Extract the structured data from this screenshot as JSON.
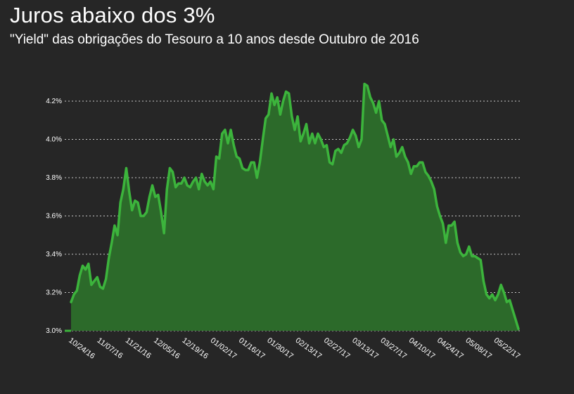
{
  "header": {
    "title": "Juros abaixo dos 3%",
    "subtitle": "\"Yield\" das obrigações do Tesouro a 10 anos desde Outubro de 2016"
  },
  "colors": {
    "background": "#262626",
    "line": "#3cb43c",
    "area": "#2c6a2a",
    "grid": "#ffffff"
  },
  "chart_data": {
    "type": "area",
    "title": "Juros abaixo dos 3%",
    "subtitle": "\"Yield\" das obrigações do Tesouro a 10 anos desde Outubro de 2016",
    "xlabel": "",
    "ylabel": "",
    "ylim": [
      3.0,
      4.3
    ],
    "y_ticks": [
      3.0,
      3.2,
      3.4,
      3.6,
      3.8,
      4.0,
      4.2
    ],
    "y_tick_labels": [
      "3.0%",
      "3.2%",
      "3.4%",
      "3.6%",
      "3.8%",
      "4.0%",
      "4.2%"
    ],
    "x_tick_labels": [
      "10/24/16",
      "11/07/16",
      "11/21/16",
      "12/05/16",
      "12/19/16",
      "01/02/17",
      "01/16/17",
      "01/30/17",
      "02/13/17",
      "02/27/17",
      "03/13/17",
      "03/27/17",
      "04/10/17",
      "04/24/17",
      "05/08/17",
      "05/22/17"
    ],
    "grid": true,
    "series": [
      {
        "values": [
          3.15,
          3.19,
          3.21,
          3.29,
          3.34,
          3.32,
          3.35,
          3.24,
          3.26,
          3.28,
          3.23,
          3.22,
          3.27,
          3.38,
          3.46,
          3.55,
          3.5,
          3.67,
          3.74,
          3.85,
          3.73,
          3.63,
          3.68,
          3.67,
          3.6,
          3.6,
          3.62,
          3.7,
          3.76,
          3.7,
          3.71,
          3.62,
          3.51,
          3.74,
          3.85,
          3.83,
          3.75,
          3.77,
          3.77,
          3.8,
          3.76,
          3.75,
          3.78,
          3.8,
          3.74,
          3.82,
          3.78,
          3.76,
          3.78,
          3.74,
          3.91,
          3.9,
          4.03,
          4.05,
          3.98,
          4.05,
          3.97,
          3.91,
          3.9,
          3.85,
          3.84,
          3.84,
          3.88,
          3.88,
          3.8,
          3.88,
          4.0,
          4.11,
          4.13,
          4.24,
          4.18,
          4.22,
          4.13,
          4.2,
          4.25,
          4.24,
          4.12,
          4.05,
          4.12,
          3.99,
          4.03,
          4.08,
          3.98,
          4.03,
          3.98,
          4.03,
          4.0,
          3.96,
          3.97,
          3.88,
          3.87,
          3.94,
          3.95,
          3.93,
          3.97,
          3.98,
          4.01,
          4.05,
          4.02,
          3.96,
          4.0,
          4.29,
          4.28,
          4.22,
          4.19,
          4.14,
          4.2,
          4.1,
          4.08,
          4.02,
          3.96,
          4.0,
          3.91,
          3.93,
          3.96,
          3.91,
          3.88,
          3.82,
          3.86,
          3.86,
          3.88,
          3.88,
          3.83,
          3.81,
          3.78,
          3.74,
          3.65,
          3.6,
          3.56,
          3.46,
          3.55,
          3.55,
          3.57,
          3.46,
          3.41,
          3.39,
          3.4,
          3.44,
          3.39,
          3.39,
          3.38,
          3.37,
          3.26,
          3.19,
          3.17,
          3.19,
          3.16,
          3.19,
          3.24,
          3.2,
          3.15,
          3.16,
          3.11,
          3.06,
          3.01
        ]
      }
    ]
  }
}
